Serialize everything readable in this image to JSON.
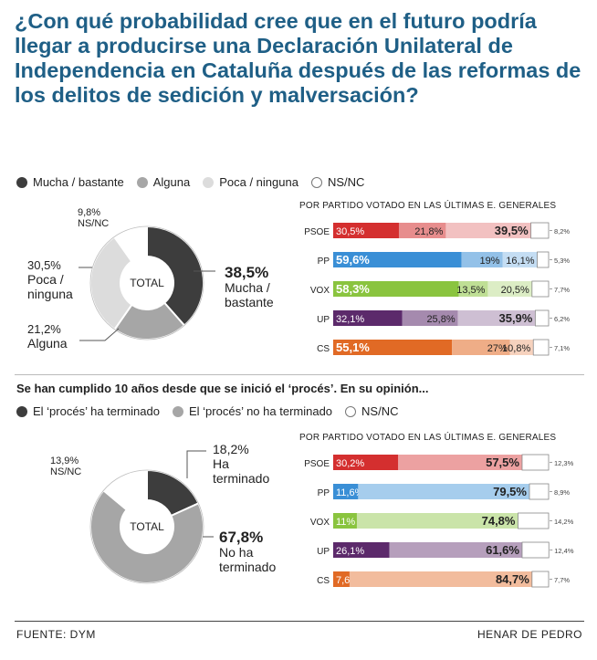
{
  "title": "¿Con qué probabilidad cree que en el futuro podría llegar a producirse una Declaración Unilateral de Independencia en Cataluña después de las reformas de los delitos de sedición y malversación?",
  "colors": {
    "title": "#1f5f86",
    "dark": "#3d3d3d",
    "mid": "#a6a6a6",
    "light": "#dcdcdc",
    "white": "#ffffff",
    "PSOE": "#d42f2f",
    "PP": "#3a8fd6",
    "VOX": "#8ac43f",
    "UP": "#5c2a6b",
    "CS": "#e16a25"
  },
  "legend1": [
    {
      "label": "Mucha / bastante",
      "color": "#3d3d3d"
    },
    {
      "label": "Alguna",
      "color": "#a6a6a6"
    },
    {
      "label": "Poca / ninguna",
      "color": "#dcdcdc"
    },
    {
      "label": "NS/NC",
      "color": "#ffffff"
    }
  ],
  "legend2": [
    {
      "label": "El ‘procés’ ha terminado",
      "color": "#a6a6a6"
    },
    {
      "label": "El ‘procés’ no ha terminado",
      "color": "#a6a6a6"
    },
    {
      "label": "NS/NC",
      "color": "#ffffff"
    }
  ],
  "question2": "Se han cumplido 10 años desde que se inició el ‘procés’. En su opinión...",
  "footer": {
    "source": "FUENTE: DYM",
    "author": "HENAR DE PEDRO"
  },
  "chart_data": [
    {
      "type": "pie",
      "center_label": "TOTAL",
      "slices": [
        {
          "name": "Mucha / bastante",
          "value": 38.5,
          "label": "38,5%",
          "sub1": "Mucha /",
          "sub2": "bastante",
          "color": "#3d3d3d"
        },
        {
          "name": "Alguna",
          "value": 21.2,
          "label": "21,2%",
          "sub1": "Alguna",
          "sub2": "",
          "color": "#a6a6a6"
        },
        {
          "name": "Poca / ninguna",
          "value": 30.5,
          "label": "30,5%",
          "sub1": "Poca /",
          "sub2": "ninguna",
          "color": "#dcdcdc"
        },
        {
          "name": "NS/NC",
          "value": 9.8,
          "label": "9,8%",
          "sub1": "NS/NC",
          "sub2": "",
          "color": "#ffffff"
        }
      ]
    },
    {
      "type": "bar",
      "stacked": true,
      "orientation": "horizontal",
      "title": "POR PARTIDO VOTADO EN LAS ÚLTIMAS E. GENERALES",
      "categories": [
        "PSOE",
        "PP",
        "VOX",
        "UP",
        "CS"
      ],
      "series": [
        {
          "name": "Mucha / bastante",
          "values": [
            30.5,
            59.6,
            58.3,
            32.1,
            55.1
          ],
          "labels": [
            "30,5%",
            "59,6%",
            "58,3%",
            "32,1%",
            "55,1%"
          ]
        },
        {
          "name": "Alguna",
          "values": [
            21.8,
            19,
            13.5,
            25.8,
            27
          ],
          "labels": [
            "21,8%",
            "19%",
            "13,5%",
            "25,8%",
            "27%"
          ]
        },
        {
          "name": "Poca / ninguna",
          "values": [
            39.5,
            16.1,
            20.5,
            35.9,
            10.8
          ],
          "labels": [
            "39,5%",
            "16,1%",
            "20,5%",
            "35,9%",
            "10,8%"
          ]
        },
        {
          "name": "NS/NC",
          "values": [
            8.2,
            5.3,
            7.7,
            6.2,
            7.1
          ],
          "labels": [
            "8,2%",
            "5,3%",
            "7,7%",
            "6,2%",
            "7,1%"
          ]
        }
      ]
    },
    {
      "type": "pie",
      "center_label": "TOTAL",
      "slices": [
        {
          "name": "El ‘procés’ ha terminado",
          "value": 18.2,
          "label": "18,2%",
          "sub1": "Ha",
          "sub2": "terminado",
          "color": "#3d3d3d"
        },
        {
          "name": "El ‘procés’ no ha terminado",
          "value": 67.8,
          "label": "67,8%",
          "sub1": "No ha",
          "sub2": "terminado",
          "color": "#a6a6a6"
        },
        {
          "name": "NS/NC",
          "value": 13.9,
          "label": "13,9%",
          "sub1": "NS/NC",
          "sub2": "",
          "color": "#ffffff"
        }
      ]
    },
    {
      "type": "bar",
      "stacked": true,
      "orientation": "horizontal",
      "title": "POR PARTIDO VOTADO EN LAS ÚLTIMAS E. GENERALES",
      "categories": [
        "PSOE",
        "PP",
        "VOX",
        "UP",
        "CS"
      ],
      "series": [
        {
          "name": "El ‘procés’ ha terminado",
          "values": [
            30.2,
            11.6,
            11,
            26.1,
            7.6
          ],
          "labels": [
            "30,2%",
            "11,6%",
            "11%",
            "26,1%",
            "7,6%"
          ]
        },
        {
          "name": "El ‘procés’ no ha terminado",
          "values": [
            57.5,
            79.5,
            74.8,
            61.6,
            84.7
          ],
          "labels": [
            "57,5%",
            "79,5%",
            "74,8%",
            "61,6%",
            "84,7%"
          ]
        },
        {
          "name": "NS/NC",
          "values": [
            12.3,
            8.9,
            14.2,
            12.4,
            7.7
          ],
          "labels": [
            "12,3%",
            "8,9%",
            "14,2%",
            "12,4%",
            "7,7%"
          ]
        }
      ]
    }
  ]
}
